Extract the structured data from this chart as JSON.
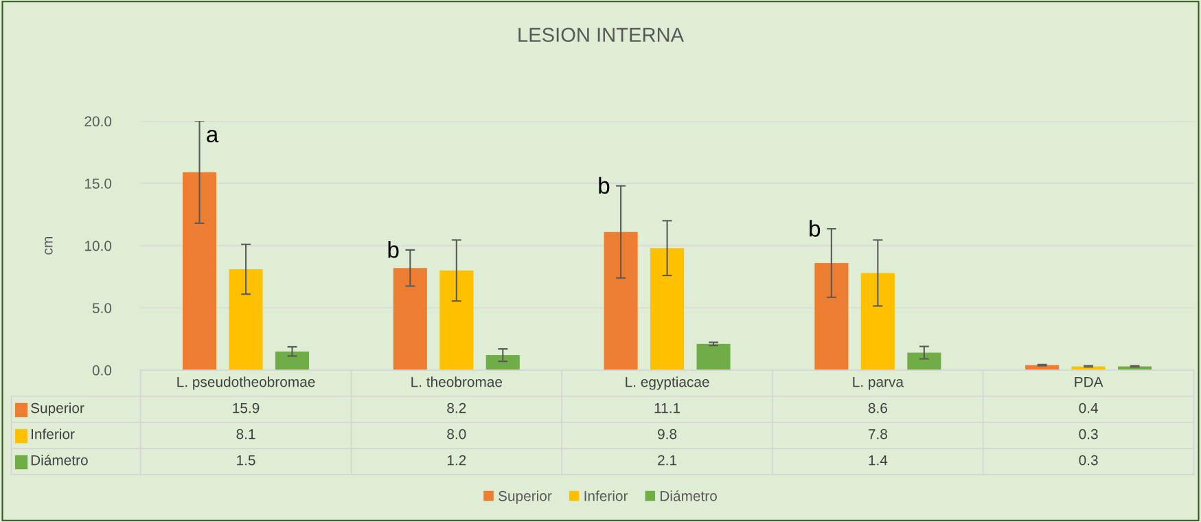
{
  "chart_data": {
    "type": "bar",
    "title": "LESION INTERNA",
    "ylabel": "cm",
    "categories": [
      "L. pseudotheobromae",
      "L. theobromae",
      "L. egyptiacae",
      "L. parva",
      "PDA"
    ],
    "series": [
      {
        "name": "Superior",
        "color": "#ed7d31",
        "values": [
          15.9,
          8.2,
          11.1,
          8.6,
          0.4
        ],
        "value_labels": [
          "15.9",
          "8.2",
          "11.1",
          "8.6",
          "0.4"
        ],
        "errors": [
          4.1,
          1.45,
          3.7,
          2.75,
          0.05
        ]
      },
      {
        "name": "Inferior",
        "color": "#ffc000",
        "values": [
          8.1,
          8.0,
          9.8,
          7.8,
          0.3
        ],
        "value_labels": [
          "8.1",
          "8.0",
          "9.8",
          "7.8",
          "0.3"
        ],
        "errors": [
          2.0,
          2.45,
          2.2,
          2.65,
          0.05
        ]
      },
      {
        "name": "Diámetro",
        "color": "#70ad47",
        "values": [
          1.5,
          1.2,
          2.1,
          1.4,
          0.3
        ],
        "value_labels": [
          "1.5",
          "1.2",
          "2.1",
          "1.4",
          "0.3"
        ],
        "errors": [
          0.37,
          0.5,
          0.13,
          0.5,
          0.05
        ]
      }
    ],
    "ylim": [
      0,
      20
    ],
    "yticks": [
      {
        "value": 0,
        "label": "0.0"
      },
      {
        "value": 5,
        "label": "5.0"
      },
      {
        "value": 10,
        "label": "10.0"
      },
      {
        "value": 15,
        "label": "15.0"
      },
      {
        "value": 20,
        "label": "20.0"
      }
    ],
    "grid": "y",
    "legend": "bottom",
    "annotations": [
      "a",
      "b",
      "b",
      "b"
    ]
  }
}
